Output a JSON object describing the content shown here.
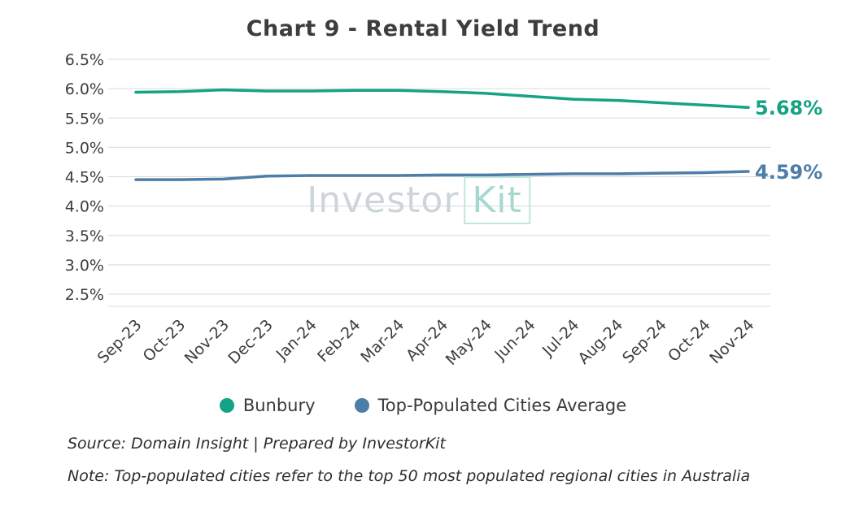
{
  "title": "Chart 9 - Rental Yield Trend",
  "chart_data": {
    "type": "line",
    "title": "Chart 9 - Rental Yield Trend",
    "xlabel": "",
    "ylabel": "",
    "ylim": [
      2.5,
      6.5
    ],
    "grid": true,
    "legend_position": "bottom",
    "y_tick_labels": [
      "6.5%",
      "6.0%",
      "5.5%",
      "5.0%",
      "4.5%",
      "4.0%",
      "3.5%",
      "3.0%",
      "2.5%"
    ],
    "categories": [
      "Sep-23",
      "Oct-23",
      "Nov-23",
      "Dec-23",
      "Jan-24",
      "Feb-24",
      "Mar-24",
      "Apr-24",
      "May-24",
      "Jun-24",
      "Jul-24",
      "Aug-24",
      "Sep-24",
      "Oct-24",
      "Nov-24"
    ],
    "series": [
      {
        "name": "Bunbury",
        "color": "#14a384",
        "values": [
          5.94,
          5.95,
          5.98,
          5.96,
          5.96,
          5.97,
          5.97,
          5.95,
          5.92,
          5.87,
          5.82,
          5.8,
          5.76,
          5.72,
          5.68
        ],
        "end_label": "5.68%"
      },
      {
        "name": "Top-Populated Cities Average",
        "color": "#4d7ea8",
        "values": [
          4.45,
          4.45,
          4.46,
          4.51,
          4.52,
          4.52,
          4.52,
          4.53,
          4.53,
          4.54,
          4.55,
          4.55,
          4.56,
          4.57,
          4.59
        ],
        "end_label": "4.59%"
      }
    ],
    "grid_color": "#d9d9d9"
  },
  "watermark": {
    "part1": "Investor",
    "part2": "Kit"
  },
  "footer": {
    "source": "Source: Domain Insight | Prepared by InvestorKit",
    "note": "Note: Top-populated cities refer to the top 50 most populated regional cities in Australia"
  }
}
